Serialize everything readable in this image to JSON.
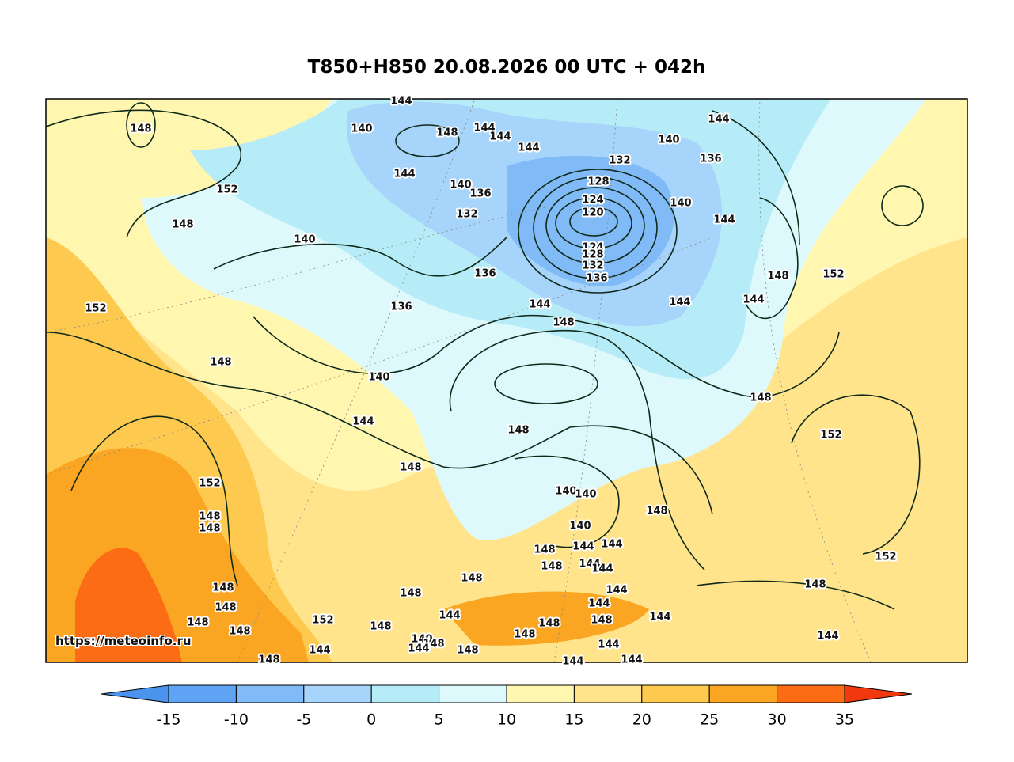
{
  "header": {
    "title": "T850+H850 20.08.2026 00 UTC + 042h"
  },
  "watermark": "https://meteoinfo.ru",
  "contour_labels": [
    148,
    140,
    144,
    148,
    144,
    144,
    144,
    144,
    140,
    132,
    136,
    152,
    144,
    140,
    136,
    128,
    124,
    120,
    140,
    144,
    132,
    148,
    140,
    124,
    128,
    132,
    136,
    136,
    148,
    152,
    152,
    136,
    144,
    144,
    144,
    148,
    148,
    140,
    148,
    144,
    148,
    152,
    148,
    152,
    140,
    140,
    148,
    148,
    148,
    140,
    148,
    144,
    144,
    148,
    152,
    144,
    144,
    148,
    148,
    148,
    148,
    144,
    148,
    144,
    152,
    144,
    148,
    148,
    148,
    144,
    148,
    148,
    148,
    144,
    140,
    148,
    144,
    144,
    148,
    144,
    148,
    144,
    144
  ],
  "colorbar": {
    "levels": [
      -15,
      -10,
      -5,
      0,
      5,
      10,
      15,
      20,
      25,
      30,
      35
    ],
    "colors": [
      "#4a94ee",
      "#5ea3f4",
      "#80baf7",
      "#a6d4fa",
      "#b6ecf7",
      "#def9fb",
      "#fff6b0",
      "#ffe48c",
      "#fdc94e",
      "#fba622",
      "#fb6c14",
      "#f2380e"
    ]
  }
}
